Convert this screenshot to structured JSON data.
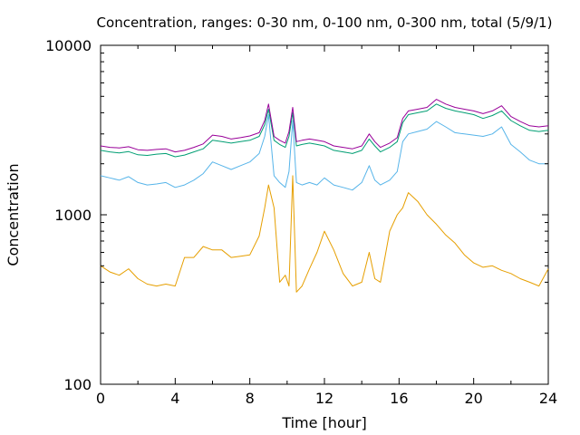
{
  "chart_data": {
    "type": "line",
    "title": "Concentration, ranges: 0-30 nm, 0-100 nm, 0-300 nm, total (5/9/1)",
    "xlabel": "Time [hour]",
    "ylabel": "Concentration",
    "xlim": [
      0,
      24
    ],
    "ylim": [
      100,
      10000
    ],
    "yscale": "log",
    "grid": false,
    "legend": "none",
    "x_ticks": [
      "0",
      "4",
      "8",
      "12",
      "16",
      "20",
      "24"
    ],
    "x_tick_values": [
      0,
      4,
      8,
      12,
      16,
      20,
      24
    ],
    "y_ticks": [
      "100",
      "1000",
      "10000"
    ],
    "y_tick_values": [
      100,
      1000,
      10000
    ],
    "x": [
      0,
      0.5,
      1,
      1.5,
      2,
      2.5,
      3,
      3.5,
      4,
      4.5,
      5,
      5.5,
      6,
      6.5,
      7,
      7.5,
      8,
      8.5,
      8.8,
      9,
      9.3,
      9.6,
      9.9,
      10.1,
      10.3,
      10.5,
      10.8,
      11.2,
      11.6,
      12,
      12.5,
      13,
      13.5,
      14,
      14.4,
      14.7,
      15,
      15.5,
      15.9,
      16.2,
      16.5,
      17,
      17.5,
      18,
      18.5,
      19,
      19.5,
      20,
      20.5,
      21,
      21.5,
      22,
      22.5,
      23,
      23.5,
      24
    ],
    "series": [
      {
        "color": "#990099",
        "values": [
          2550,
          2500,
          2480,
          2520,
          2420,
          2400,
          2430,
          2450,
          2350,
          2400,
          2500,
          2620,
          2950,
          2900,
          2800,
          2850,
          2920,
          3050,
          3600,
          4500,
          2900,
          2750,
          2650,
          3100,
          4300,
          2700,
          2750,
          2800,
          2750,
          2700,
          2550,
          2500,
          2450,
          2550,
          3000,
          2700,
          2500,
          2650,
          2850,
          3700,
          4100,
          4200,
          4300,
          4800,
          4500,
          4300,
          4200,
          4100,
          3950,
          4100,
          4400,
          3800,
          3550,
          3350,
          3300,
          3350
        ]
      },
      {
        "color": "#009e73",
        "values": [
          2400,
          2350,
          2320,
          2360,
          2260,
          2240,
          2280,
          2300,
          2200,
          2250,
          2350,
          2450,
          2750,
          2700,
          2650,
          2700,
          2750,
          2900,
          3400,
          4200,
          2750,
          2600,
          2500,
          2900,
          4000,
          2550,
          2600,
          2650,
          2600,
          2550,
          2400,
          2350,
          2300,
          2400,
          2800,
          2550,
          2350,
          2500,
          2700,
          3500,
          3900,
          4000,
          4100,
          4500,
          4250,
          4100,
          4000,
          3900,
          3700,
          3850,
          4100,
          3600,
          3350,
          3150,
          3100,
          3150
        ]
      },
      {
        "color": "#56b4e9",
        "values": [
          1700,
          1650,
          1600,
          1680,
          1550,
          1500,
          1520,
          1550,
          1450,
          1500,
          1600,
          1750,
          2050,
          1950,
          1850,
          1950,
          2050,
          2300,
          2900,
          3900,
          1700,
          1550,
          1450,
          1800,
          3600,
          1550,
          1500,
          1550,
          1500,
          1650,
          1500,
          1450,
          1400,
          1550,
          1950,
          1600,
          1500,
          1600,
          1800,
          2700,
          3000,
          3100,
          3200,
          3550,
          3300,
          3050,
          3000,
          2950,
          2900,
          3000,
          3300,
          2600,
          2350,
          2100,
          2000,
          2000
        ]
      },
      {
        "color": "#e69f00",
        "values": [
          500,
          460,
          440,
          480,
          420,
          390,
          380,
          390,
          380,
          560,
          560,
          650,
          620,
          620,
          560,
          570,
          580,
          750,
          1100,
          1500,
          1100,
          400,
          440,
          380,
          1700,
          350,
          380,
          480,
          600,
          800,
          620,
          450,
          380,
          400,
          600,
          420,
          400,
          800,
          1000,
          1100,
          1350,
          1200,
          1000,
          880,
          760,
          680,
          580,
          520,
          490,
          500,
          470,
          450,
          420,
          400,
          380,
          480
        ]
      }
    ]
  }
}
